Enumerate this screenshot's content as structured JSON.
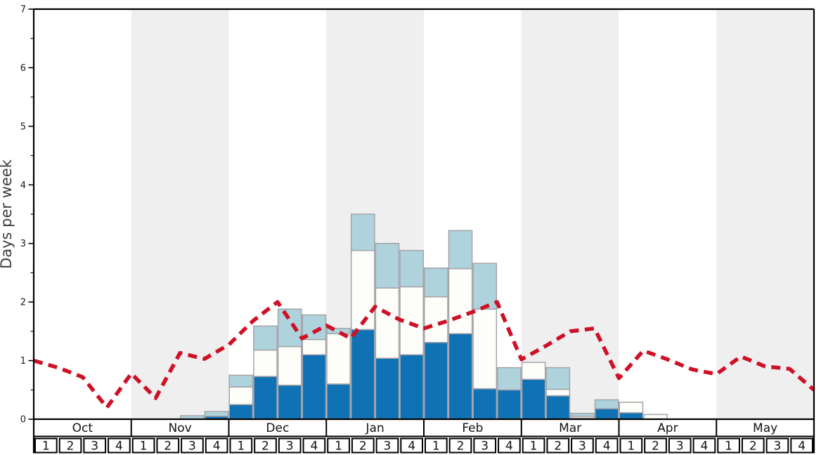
{
  "chart_data": {
    "type": "bar",
    "subtype": "stacked-bars-with-dashed-line",
    "title": "",
    "xlabel": "",
    "ylabel": "Days per week",
    "ylim": [
      0,
      7
    ],
    "y_ticks": [
      "0",
      "1",
      "2",
      "3",
      "4",
      "5",
      "6",
      "7"
    ],
    "y_minor_step": 0.5,
    "grid": false,
    "legend": "none",
    "months": [
      "Oct",
      "Nov",
      "Dec",
      "Jan",
      "Feb",
      "Mar",
      "Apr",
      "May"
    ],
    "shaded_months": [
      "Nov",
      "Jan",
      "Mar",
      "May"
    ],
    "weeks_per_month": 4,
    "week_labels": [
      "1",
      "2",
      "3",
      "4"
    ],
    "series": [
      {
        "name": "dark-blue-days",
        "type": "stacked-bar-segment",
        "color": "#0f72b5",
        "values": [
          0,
          0,
          0,
          0,
          0,
          0,
          0,
          0.05,
          0.25,
          0.73,
          0.58,
          1.1,
          0.6,
          1.53,
          1.04,
          1.1,
          1.31,
          1.46,
          0.52,
          0.5,
          0.68,
          0.4,
          0.02,
          0.18,
          0.11,
          0,
          0,
          0,
          0,
          0,
          0,
          0
        ]
      },
      {
        "name": "white-days",
        "type": "stacked-bar-segment",
        "color": "#fdfdfa",
        "values": [
          0,
          0,
          0,
          0,
          0,
          0,
          0,
          0,
          0.3,
          0.45,
          0.66,
          0.26,
          0.86,
          1.35,
          1.2,
          1.16,
          0.78,
          1.11,
          1.36,
          0,
          0.29,
          0.11,
          0.03,
          0,
          0.18,
          0.08,
          0,
          0,
          0,
          0,
          0,
          0
        ]
      },
      {
        "name": "light-blue-days",
        "type": "stacked-bar-segment",
        "color": "#aed3dd",
        "values": [
          0,
          0,
          0,
          0,
          0,
          0,
          0.06,
          0.08,
          0.2,
          0.41,
          0.64,
          0.42,
          0.09,
          0.62,
          0.76,
          0.62,
          0.49,
          0.65,
          0.78,
          0.38,
          0,
          0.37,
          0.05,
          0.15,
          0,
          0,
          0,
          0,
          0,
          0,
          0,
          0
        ]
      },
      {
        "name": "red-dashed-line",
        "type": "line",
        "style": "dashed",
        "color": "#ce1126",
        "x_unit": "week-boundary-index",
        "points": [
          1.0,
          0.88,
          0.72,
          0.2,
          0.78,
          0.36,
          1.13,
          1.03,
          1.27,
          1.68,
          2.0,
          1.38,
          1.6,
          1.38,
          1.92,
          1.7,
          1.55,
          1.68,
          1.83,
          2.0,
          1.02,
          1.25,
          1.5,
          1.55,
          0.7,
          1.17,
          1.02,
          0.85,
          0.77,
          1.07,
          0.9,
          0.86,
          0.5
        ]
      }
    ]
  },
  "colors": {
    "band_gray": "#efeff0",
    "bar_border": "#a5a3a7",
    "axis_black": "#000000",
    "tick_label": "#1a1a1a",
    "table_text": "#111111",
    "ylabel_text": "#3d3d3d",
    "background": "#ffffff"
  }
}
